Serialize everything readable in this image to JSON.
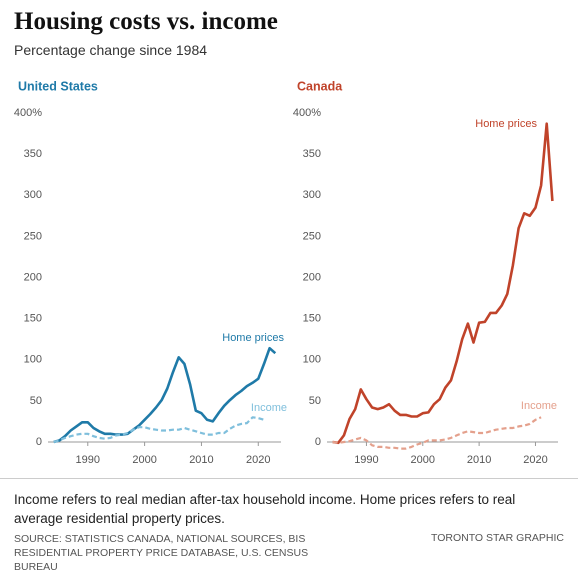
{
  "title": "Housing costs vs. income",
  "subtitle": "Percentage change since 1984",
  "chart_data": [
    {
      "type": "line",
      "title": "United States",
      "title_color": "#1f7aa8",
      "x": [
        1984,
        1985,
        1986,
        1987,
        1988,
        1989,
        1990,
        1991,
        1992,
        1993,
        1994,
        1995,
        1996,
        1997,
        1998,
        1999,
        2000,
        2001,
        2002,
        2003,
        2004,
        2005,
        2006,
        2007,
        2008,
        2009,
        2010,
        2011,
        2012,
        2013,
        2014,
        2015,
        2016,
        2017,
        2018,
        2019,
        2020,
        2021,
        2022,
        2023
      ],
      "series": [
        {
          "name": "Home prices",
          "color": "#1f7aa8",
          "dashed": false,
          "values": [
            0,
            2,
            7,
            14,
            19,
            24,
            24,
            17,
            13,
            10,
            10,
            9,
            9,
            10,
            15,
            20,
            27,
            34,
            42,
            51,
            65,
            85,
            103,
            95,
            70,
            38,
            35,
            27,
            25,
            35,
            44,
            51,
            57,
            62,
            68,
            72,
            77,
            95,
            114,
            108
          ]
        },
        {
          "name": "Income",
          "color": "#7fbfdc",
          "dashed": true,
          "values": [
            0,
            2,
            5,
            7,
            9,
            10,
            10,
            7,
            5,
            4,
            5,
            8,
            9,
            11,
            15,
            18,
            18,
            16,
            15,
            14,
            14,
            15,
            15,
            17,
            15,
            13,
            11,
            9,
            9,
            11,
            11,
            16,
            20,
            22,
            23,
            30,
            29,
            27,
            null,
            null
          ]
        }
      ],
      "xlim": [
        1983,
        2024
      ],
      "xticks": [
        1990,
        2000,
        2010,
        2020
      ],
      "ylim": [
        -15,
        400
      ],
      "yticks": [
        0,
        50,
        100,
        150,
        200,
        250,
        300,
        350,
        {
          "value": 400,
          "label": "400%"
        }
      ]
    },
    {
      "type": "line",
      "title": "Canada",
      "title_color": "#c0432a",
      "x": [
        1984,
        1985,
        1986,
        1987,
        1988,
        1989,
        1990,
        1991,
        1992,
        1993,
        1994,
        1995,
        1996,
        1997,
        1998,
        1999,
        2000,
        2001,
        2002,
        2003,
        2004,
        2005,
        2006,
        2007,
        2008,
        2009,
        2010,
        2011,
        2012,
        2013,
        2014,
        2015,
        2016,
        2017,
        2018,
        2019,
        2020,
        2021,
        2022,
        2023
      ],
      "series": [
        {
          "name": "Home prices",
          "color": "#c0432a",
          "dashed": false,
          "values": [
            0,
            -1,
            8,
            28,
            40,
            64,
            52,
            42,
            40,
            42,
            46,
            38,
            33,
            33,
            31,
            31,
            35,
            36,
            46,
            52,
            66,
            75,
            98,
            125,
            144,
            121,
            145,
            146,
            157,
            157,
            166,
            180,
            215,
            260,
            278,
            275,
            285,
            312,
            387,
            293
          ]
        },
        {
          "name": "Income",
          "color": "#e4a08c",
          "dashed": true,
          "values": [
            0,
            -1,
            0,
            1,
            3,
            5,
            2,
            -4,
            -6,
            -6,
            -7,
            -7,
            -8,
            -8,
            -6,
            -3,
            -1,
            2,
            2,
            2,
            3,
            5,
            8,
            11,
            13,
            12,
            11,
            11,
            13,
            15,
            16,
            17,
            17,
            19,
            20,
            22,
            27,
            30,
            null,
            null
          ]
        }
      ],
      "xlim": [
        1983,
        2024
      ],
      "xticks": [
        1990,
        2000,
        2010,
        2020
      ],
      "ylim": [
        -15,
        400
      ],
      "yticks": [
        0,
        50,
        100,
        150,
        200,
        250,
        300,
        350,
        {
          "value": 400,
          "label": "400%"
        }
      ]
    }
  ],
  "note": "Income refers to real median after-tax household income. Home prices refers to real average residential property prices.",
  "source": "SOURCE: STATISTICS CANADA, NATIONAL SOURCES, BIS RESIDENTIAL PROPERTY PRICE DATABASE, U.S. CENSUS BUREAU",
  "credit": "TORONTO STAR GRAPHIC"
}
